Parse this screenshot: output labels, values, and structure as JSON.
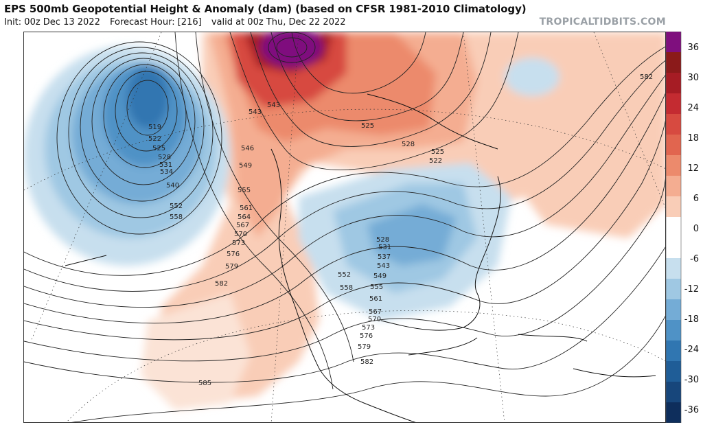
{
  "header": {
    "title": "EPS 500mb Geopotential Height & Anomaly (dam) (based on CFSR 1981-2010 Climatology)",
    "init": "Init: 00z Dec 13 2022",
    "forecast_hour": "Forecast Hour: [216]",
    "valid": "valid at 00z Thu, Dec 22 2022",
    "brand": "TROPICALTIDBITS.COM"
  },
  "map": {
    "region": "North America and North Pacific / North Atlantic",
    "features": [
      {
        "name": "negative-anomaly-north-pacific",
        "anomaly_dam": -21
      },
      {
        "name": "negative-anomaly-central-eastern-us",
        "anomaly_dam": -15
      },
      {
        "name": "negative-anomaly-north-atlantic",
        "anomaly_dam": -6
      },
      {
        "name": "positive-anomaly-alaska-arctic",
        "anomaly_dam": 36
      },
      {
        "name": "positive-anomaly-western-canada",
        "anomaly_dam": 15
      },
      {
        "name": "positive-anomaly-eastern-pacific",
        "anomaly_dam": 9
      }
    ],
    "contour_labels": [
      "519",
      "522",
      "525",
      "528",
      "531",
      "534",
      "540",
      "552",
      "558",
      "543",
      "543",
      "546",
      "549",
      "555",
      "561",
      "564",
      "567",
      "570",
      "573",
      "576",
      "579",
      "582",
      "525",
      "528",
      "525",
      "522",
      "528",
      "531",
      "537",
      "543",
      "549",
      "552",
      "558",
      "555",
      "561",
      "567",
      "570",
      "573",
      "576",
      "579",
      "582",
      "585",
      "582"
    ]
  },
  "colorbar": {
    "colors": [
      "#7f0f7e",
      "#8b1a1a",
      "#a61c24",
      "#c42b31",
      "#d74a40",
      "#e1654f",
      "#ec8a6c",
      "#f4ad91",
      "#f9cdb7",
      "#ffffff",
      "#ffffff",
      "#c7dfee",
      "#9fc8e3",
      "#74acd6",
      "#4f92c6",
      "#3076b1",
      "#1f5d97",
      "#17467b",
      "#0e2e5c"
    ],
    "tick_labels": [
      "36",
      "30",
      "24",
      "18",
      "12",
      "6",
      "0",
      "-6",
      "-12",
      "-18",
      "-24",
      "-30",
      "-36"
    ]
  }
}
